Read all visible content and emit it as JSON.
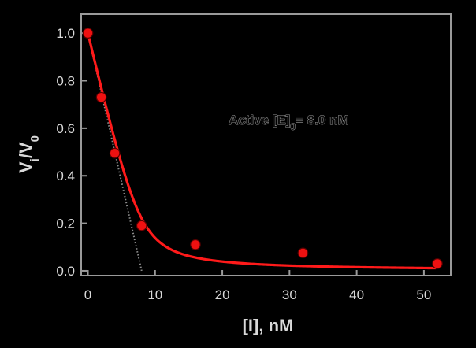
{
  "chart_data": {
    "type": "scatter",
    "title": "",
    "xlabel": "[I], nM",
    "ylabel": {
      "main": "V",
      "sub1": "i",
      "sep": "/V",
      "sub2": "0"
    },
    "xlim": [
      -1,
      54
    ],
    "ylim": [
      -0.02,
      1.08
    ],
    "xticks": [
      0,
      10,
      20,
      30,
      40,
      50
    ],
    "yticks": [
      0.0,
      0.2,
      0.4,
      0.6,
      0.8,
      1.0
    ],
    "xtick_labels": [
      "0",
      "10",
      "20",
      "30",
      "40",
      "50"
    ],
    "ytick_labels": [
      "0.0",
      "0.2",
      "0.4",
      "0.6",
      "0.8",
      "1.0"
    ],
    "annotation": {
      "prefix": "Active [E]",
      "sub": "0",
      "suffix": "= 8.0 nM"
    },
    "points": {
      "x": [
        0,
        2,
        4,
        8,
        16,
        32,
        52
      ],
      "y": [
        1.0,
        0.73,
        0.495,
        0.19,
        0.11,
        0.075,
        0.03
      ]
    },
    "fit": {
      "model": "morrison",
      "E0": 8.0,
      "Kapp": 0.5
    },
    "tangent": {
      "x": [
        0,
        8
      ],
      "y": [
        1.0,
        0.0
      ]
    },
    "grid": false,
    "colors": {
      "background": "#000000",
      "axes": "#9a9a9a",
      "text": "#d9d9d9",
      "fit_line": "#ff1a1a",
      "point_fill": "#ee1111",
      "tangent": "#8a8a8a"
    }
  }
}
